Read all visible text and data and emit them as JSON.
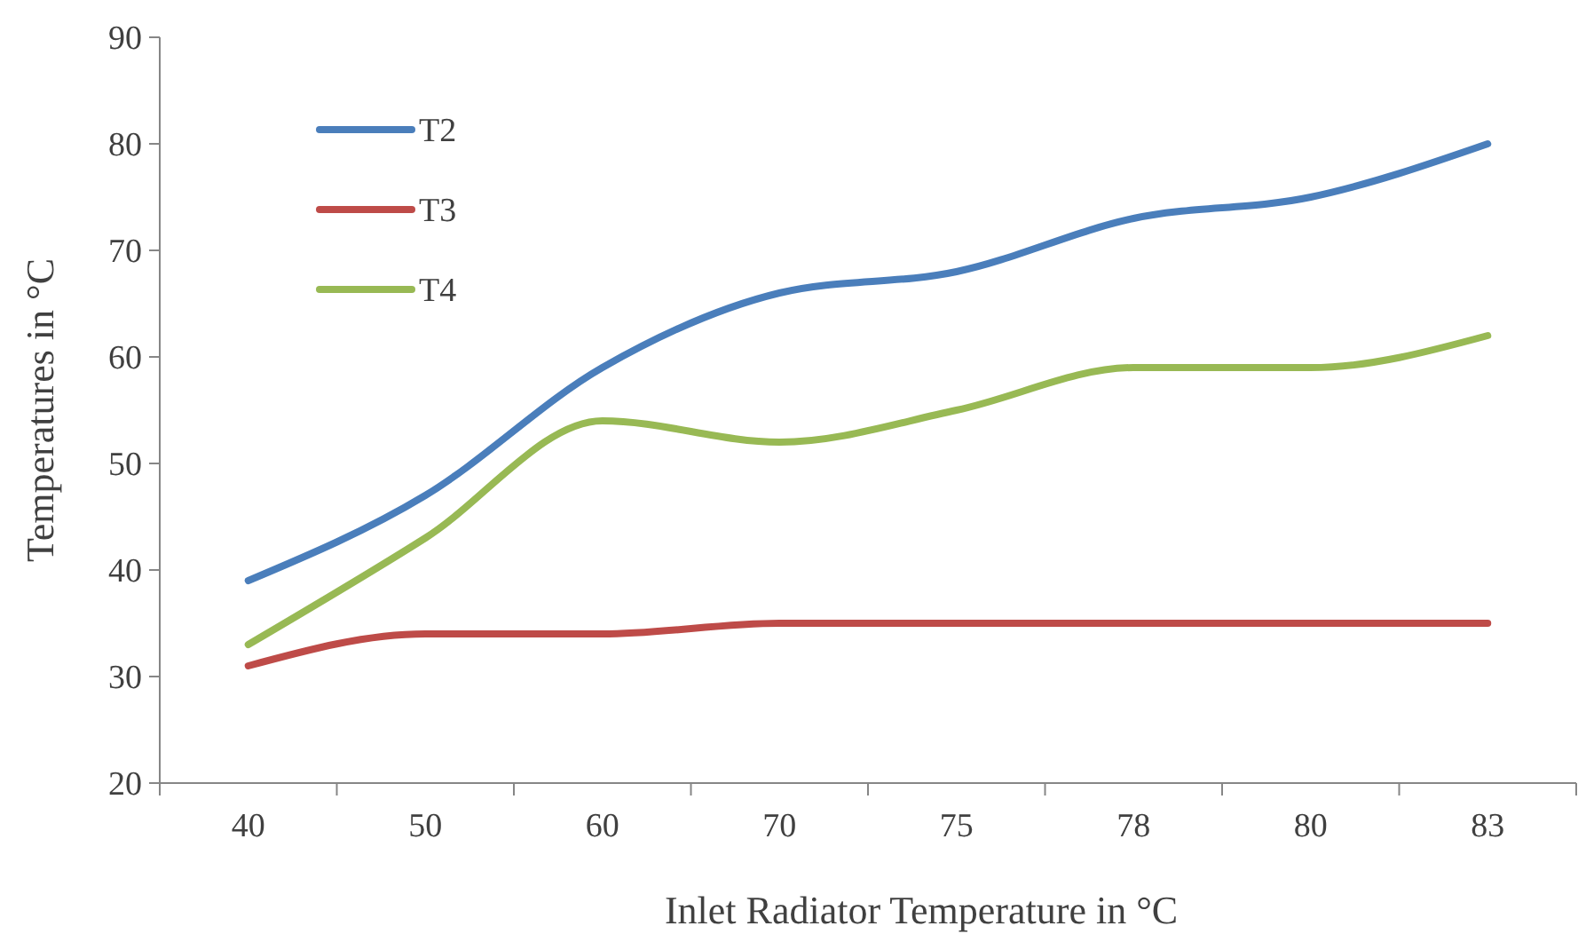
{
  "chart_data": {
    "type": "line",
    "xlabel": "Inlet Radiator Temperature in °C",
    "ylabel": "Temperatures in °C",
    "categories": [
      "40",
      "50",
      "60",
      "70",
      "75",
      "78",
      "80",
      "83"
    ],
    "ylim": [
      20,
      90
    ],
    "yticks": [
      20,
      30,
      40,
      50,
      60,
      70,
      80,
      90
    ],
    "grid": false,
    "legend": "top left",
    "marker": "none",
    "line_style": "solid",
    "series": [
      {
        "name": "T2",
        "color": "#4a7ebb",
        "values": [
          39,
          47,
          59,
          66,
          68,
          73,
          75,
          80
        ]
      },
      {
        "name": "T3",
        "color": "#be4b48",
        "values": [
          31,
          34,
          34,
          35,
          35,
          35,
          35,
          35
        ]
      },
      {
        "name": "T4",
        "color": "#98b954",
        "values": [
          33,
          43,
          54,
          52,
          55,
          59,
          59,
          62
        ]
      }
    ]
  }
}
